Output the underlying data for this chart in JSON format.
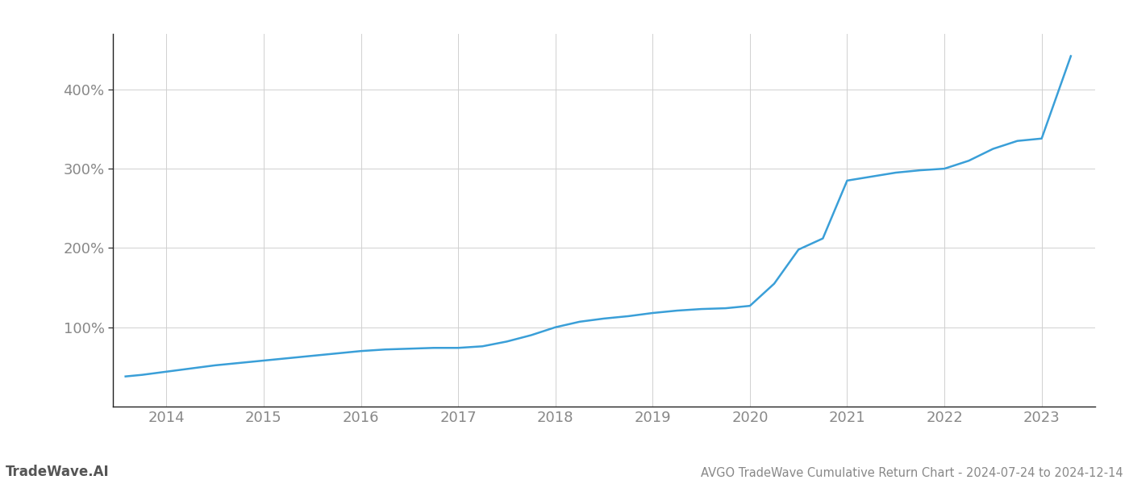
{
  "title": "AVGO TradeWave Cumulative Return Chart - 2024-07-24 to 2024-12-14",
  "watermark": "TradeWave.AI",
  "line_color": "#3a9fd8",
  "background_color": "#ffffff",
  "grid_color": "#d0d0d0",
  "x_years": [
    2014,
    2015,
    2016,
    2017,
    2018,
    2019,
    2020,
    2021,
    2022,
    2023
  ],
  "data_x": [
    2013.58,
    2013.75,
    2014.0,
    2014.25,
    2014.5,
    2014.75,
    2015.0,
    2015.25,
    2015.5,
    2015.75,
    2016.0,
    2016.25,
    2016.5,
    2016.75,
    2017.0,
    2017.25,
    2017.5,
    2017.75,
    2018.0,
    2018.25,
    2018.5,
    2018.75,
    2019.0,
    2019.25,
    2019.5,
    2019.75,
    2020.0,
    2020.25,
    2020.5,
    2020.75,
    2021.0,
    2021.25,
    2021.5,
    2021.75,
    2022.0,
    2022.25,
    2022.5,
    2022.75,
    2023.0,
    2023.15,
    2023.3
  ],
  "data_y": [
    38,
    40,
    44,
    48,
    52,
    55,
    58,
    61,
    64,
    67,
    70,
    72,
    73,
    74,
    74,
    76,
    82,
    90,
    100,
    107,
    111,
    114,
    118,
    121,
    123,
    124,
    127,
    155,
    198,
    212,
    285,
    290,
    295,
    298,
    300,
    310,
    325,
    335,
    338,
    390,
    442
  ],
  "ylim": [
    0,
    470
  ],
  "xlim": [
    2013.45,
    2023.55
  ],
  "yticks": [
    100,
    200,
    300,
    400
  ],
  "ytick_labels": [
    "100%",
    "200%",
    "300%",
    "400%"
  ],
  "title_fontsize": 10.5,
  "watermark_fontsize": 12,
  "tick_fontsize": 13,
  "line_width": 1.8,
  "spine_color": "#222222"
}
